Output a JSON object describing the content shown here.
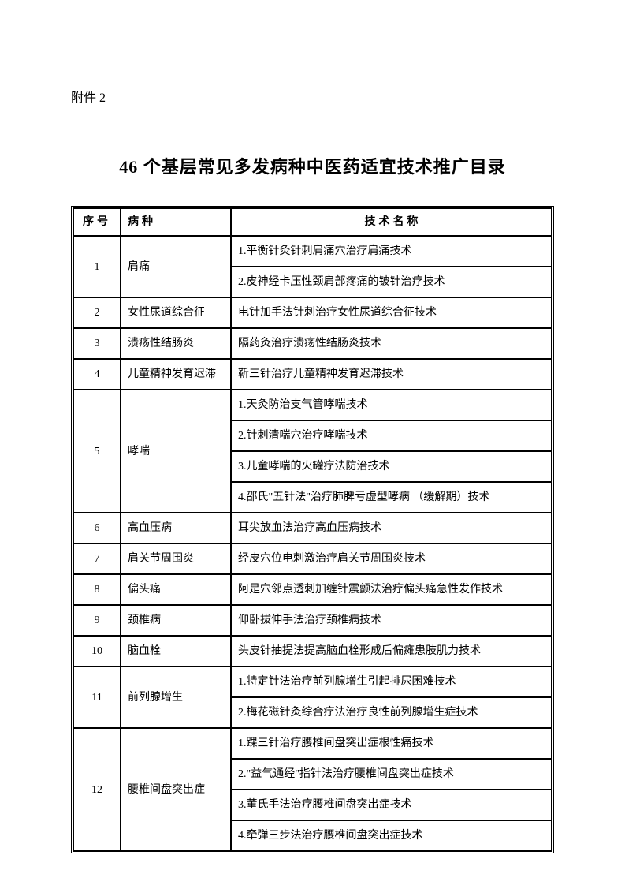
{
  "attachment_label": "附件 2",
  "title": "46 个基层常见多发病种中医药适宜技术推广目录",
  "headers": {
    "num": "序号",
    "disease": "病种",
    "technique": "技术名称"
  },
  "rows": [
    {
      "num": "1",
      "disease": "肩痛",
      "techs": [
        "1.平衡针灸针刺肩痛穴治疗肩痛技术",
        "2.皮神经卡压性颈肩部疼痛的铍针治疗技术"
      ]
    },
    {
      "num": "2",
      "disease": "女性尿道综合征",
      "techs": [
        "电针加手法针刺治疗女性尿道综合征技术"
      ]
    },
    {
      "num": "3",
      "disease": "溃疡性结肠炎",
      "techs": [
        "隔药灸治疗溃疡性结肠炎技术"
      ]
    },
    {
      "num": "4",
      "disease": "儿童精神发育迟滞",
      "techs": [
        "靳三针治疗儿童精神发育迟滞技术"
      ]
    },
    {
      "num": "5",
      "disease": "哮喘",
      "techs": [
        "1.天灸防治支气管哮喘技术",
        "2.针刺清喘穴治疗哮喘技术",
        "3.儿童哮喘的火罐疗法防治技术",
        "4.邵氏\"五针法\"治疗肺脾亏虚型哮病 （缓解期）技术"
      ]
    },
    {
      "num": "6",
      "disease": "高血压病",
      "techs": [
        "耳尖放血法治疗高血压病技术"
      ]
    },
    {
      "num": "7",
      "disease": "肩关节周围炎",
      "techs": [
        "经皮穴位电刺激治疗肩关节周围炎技术"
      ]
    },
    {
      "num": "8",
      "disease": "偏头痛",
      "techs": [
        "阿是穴邻点透刺加缠针震颤法治疗偏头痛急性发作技术"
      ]
    },
    {
      "num": "9",
      "disease": "颈椎病",
      "techs": [
        "仰卧拔伸手法治疗颈椎病技术"
      ]
    },
    {
      "num": "10",
      "disease": "脑血栓",
      "techs": [
        "头皮针抽提法提高脑血栓形成后偏瘫患肢肌力技术"
      ]
    },
    {
      "num": "11",
      "disease": "前列腺增生",
      "techs": [
        "1.特定针法治疗前列腺增生引起排尿困难技术",
        "2.梅花磁针灸综合疗法治疗良性前列腺增生症技术"
      ]
    },
    {
      "num": "12",
      "disease": "腰椎间盘突出症",
      "techs": [
        "1.踝三针治疗腰椎间盘突出症根性痛技术",
        "2.\"益气通经\"指针法治疗腰椎间盘突出症技术",
        "3.董氏手法治疗腰椎间盘突出症技术",
        "4.牵弹三步法治疗腰椎间盘突出症技术"
      ]
    }
  ]
}
